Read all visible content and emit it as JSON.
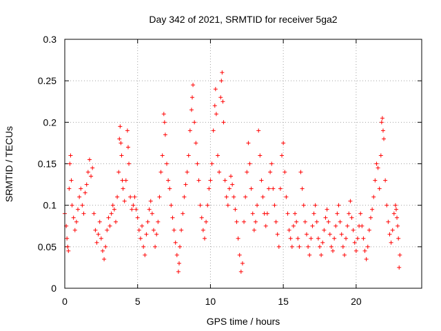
{
  "chart_data": {
    "type": "scatter",
    "title": "Day 342 of 2021, SRMTID for receiver 5ga2",
    "xlabel": "GPS time / hours",
    "ylabel": "SRMTID / TECUs",
    "xlim": [
      0,
      24.5
    ],
    "ylim": [
      0,
      0.3
    ],
    "xticks": [
      0,
      5,
      10,
      15,
      20
    ],
    "xtick_labels": [
      "0",
      "5",
      "10",
      "15",
      "20"
    ],
    "yticks": [
      0,
      0.05,
      0.1,
      0.15,
      0.2,
      0.25,
      0.3
    ],
    "ytick_labels": [
      "0",
      "0.05",
      "0.1",
      "0.15",
      "0.2",
      "0.25",
      "0.3"
    ],
    "grid": true,
    "marker": "plus",
    "color": "#ff0000",
    "series": [
      {
        "name": "SRMTID",
        "points": [
          [
            0.0,
            0.09
          ],
          [
            0.1,
            0.075
          ],
          [
            0.15,
            0.06
          ],
          [
            0.2,
            0.05
          ],
          [
            0.25,
            0.045
          ],
          [
            0.3,
            0.12
          ],
          [
            0.35,
            0.15
          ],
          [
            0.4,
            0.16
          ],
          [
            0.45,
            0.13
          ],
          [
            0.5,
            0.1
          ],
          [
            0.6,
            0.085
          ],
          [
            0.7,
            0.07
          ],
          [
            0.8,
            0.08
          ],
          [
            0.9,
            0.095
          ],
          [
            1.0,
            0.11
          ],
          [
            1.1,
            0.12
          ],
          [
            1.2,
            0.1
          ],
          [
            1.3,
            0.09
          ],
          [
            1.4,
            0.115
          ],
          [
            1.5,
            0.125
          ],
          [
            1.6,
            0.14
          ],
          [
            1.7,
            0.155
          ],
          [
            1.8,
            0.135
          ],
          [
            1.9,
            0.145
          ],
          [
            2.0,
            0.09
          ],
          [
            2.1,
            0.07
          ],
          [
            2.2,
            0.055
          ],
          [
            2.3,
            0.065
          ],
          [
            2.4,
            0.08
          ],
          [
            2.5,
            0.06
          ],
          [
            2.6,
            0.045
          ],
          [
            2.7,
            0.035
          ],
          [
            2.8,
            0.05
          ],
          [
            2.9,
            0.07
          ],
          [
            3.0,
            0.085
          ],
          [
            3.1,
            0.075
          ],
          [
            3.2,
            0.09
          ],
          [
            3.3,
            0.1
          ],
          [
            3.4,
            0.095
          ],
          [
            3.5,
            0.08
          ],
          [
            3.6,
            0.11
          ],
          [
            3.7,
            0.14
          ],
          [
            3.75,
            0.18
          ],
          [
            3.8,
            0.195
          ],
          [
            3.85,
            0.175
          ],
          [
            3.9,
            0.16
          ],
          [
            3.95,
            0.13
          ],
          [
            4.0,
            0.12
          ],
          [
            4.1,
            0.105
          ],
          [
            4.2,
            0.13
          ],
          [
            4.3,
            0.19
          ],
          [
            4.35,
            0.17
          ],
          [
            4.4,
            0.15
          ],
          [
            4.5,
            0.11
          ],
          [
            4.6,
            0.095
          ],
          [
            4.7,
            0.1
          ],
          [
            4.8,
            0.11
          ],
          [
            4.9,
            0.095
          ],
          [
            5.0,
            0.085
          ],
          [
            5.1,
            0.07
          ],
          [
            5.2,
            0.06
          ],
          [
            5.3,
            0.075
          ],
          [
            5.4,
            0.05
          ],
          [
            5.5,
            0.04
          ],
          [
            5.6,
            0.065
          ],
          [
            5.7,
            0.08
          ],
          [
            5.8,
            0.095
          ],
          [
            5.9,
            0.105
          ],
          [
            6.0,
            0.09
          ],
          [
            6.1,
            0.07
          ],
          [
            6.2,
            0.05
          ],
          [
            6.3,
            0.065
          ],
          [
            6.4,
            0.08
          ],
          [
            6.5,
            0.11
          ],
          [
            6.6,
            0.14
          ],
          [
            6.7,
            0.16
          ],
          [
            6.8,
            0.21
          ],
          [
            6.85,
            0.2
          ],
          [
            6.9,
            0.185
          ],
          [
            7.0,
            0.15
          ],
          [
            7.1,
            0.13
          ],
          [
            7.2,
            0.12
          ],
          [
            7.3,
            0.1
          ],
          [
            7.4,
            0.085
          ],
          [
            7.5,
            0.07
          ],
          [
            7.6,
            0.055
          ],
          [
            7.7,
            0.04
          ],
          [
            7.8,
            0.02
          ],
          [
            7.85,
            0.03
          ],
          [
            7.9,
            0.05
          ],
          [
            8.0,
            0.07
          ],
          [
            8.1,
            0.09
          ],
          [
            8.2,
            0.11
          ],
          [
            8.3,
            0.125
          ],
          [
            8.4,
            0.14
          ],
          [
            8.5,
            0.16
          ],
          [
            8.6,
            0.19
          ],
          [
            8.7,
            0.215
          ],
          [
            8.75,
            0.23
          ],
          [
            8.8,
            0.245
          ],
          [
            8.9,
            0.2
          ],
          [
            9.0,
            0.175
          ],
          [
            9.1,
            0.15
          ],
          [
            9.2,
            0.13
          ],
          [
            9.3,
            0.1
          ],
          [
            9.4,
            0.085
          ],
          [
            9.5,
            0.07
          ],
          [
            9.6,
            0.06
          ],
          [
            9.7,
            0.08
          ],
          [
            9.8,
            0.1
          ],
          [
            9.9,
            0.12
          ],
          [
            10.0,
            0.13
          ],
          [
            10.1,
            0.15
          ],
          [
            10.2,
            0.19
          ],
          [
            10.3,
            0.22
          ],
          [
            10.35,
            0.24
          ],
          [
            10.4,
            0.21
          ],
          [
            10.5,
            0.16
          ],
          [
            10.6,
            0.14
          ],
          [
            10.7,
            0.23
          ],
          [
            10.75,
            0.25
          ],
          [
            10.8,
            0.26
          ],
          [
            10.85,
            0.225
          ],
          [
            10.9,
            0.2
          ],
          [
            11.0,
            0.13
          ],
          [
            11.1,
            0.11
          ],
          [
            11.2,
            0.1
          ],
          [
            11.3,
            0.12
          ],
          [
            11.4,
            0.135
          ],
          [
            11.5,
            0.125
          ],
          [
            11.6,
            0.11
          ],
          [
            11.7,
            0.095
          ],
          [
            11.8,
            0.08
          ],
          [
            11.9,
            0.06
          ],
          [
            12.0,
            0.04
          ],
          [
            12.1,
            0.02
          ],
          [
            12.2,
            0.03
          ],
          [
            12.3,
            0.08
          ],
          [
            12.4,
            0.11
          ],
          [
            12.5,
            0.14
          ],
          [
            12.6,
            0.175
          ],
          [
            12.7,
            0.15
          ],
          [
            12.8,
            0.12
          ],
          [
            12.9,
            0.09
          ],
          [
            13.0,
            0.07
          ],
          [
            13.1,
            0.08
          ],
          [
            13.2,
            0.1
          ],
          [
            13.3,
            0.19
          ],
          [
            13.4,
            0.16
          ],
          [
            13.5,
            0.13
          ],
          [
            13.6,
            0.11
          ],
          [
            13.7,
            0.09
          ],
          [
            13.8,
            0.075
          ],
          [
            13.9,
            0.09
          ],
          [
            14.0,
            0.12
          ],
          [
            14.1,
            0.14
          ],
          [
            14.2,
            0.15
          ],
          [
            14.3,
            0.12
          ],
          [
            14.4,
            0.1
          ],
          [
            14.5,
            0.08
          ],
          [
            14.6,
            0.065
          ],
          [
            14.7,
            0.05
          ],
          [
            14.8,
            0.12
          ],
          [
            14.9,
            0.16
          ],
          [
            15.0,
            0.175
          ],
          [
            15.1,
            0.14
          ],
          [
            15.2,
            0.11
          ],
          [
            15.3,
            0.09
          ],
          [
            15.4,
            0.07
          ],
          [
            15.5,
            0.06
          ],
          [
            15.6,
            0.05
          ],
          [
            15.7,
            0.075
          ],
          [
            15.8,
            0.09
          ],
          [
            15.9,
            0.08
          ],
          [
            16.0,
            0.06
          ],
          [
            16.1,
            0.05
          ],
          [
            16.2,
            0.14
          ],
          [
            16.3,
            0.12
          ],
          [
            16.4,
            0.1
          ],
          [
            16.5,
            0.08
          ],
          [
            16.6,
            0.065
          ],
          [
            16.7,
            0.05
          ],
          [
            16.8,
            0.04
          ],
          [
            16.9,
            0.06
          ],
          [
            17.0,
            0.075
          ],
          [
            17.1,
            0.09
          ],
          [
            17.2,
            0.1
          ],
          [
            17.3,
            0.08
          ],
          [
            17.4,
            0.06
          ],
          [
            17.5,
            0.05
          ],
          [
            17.6,
            0.04
          ],
          [
            17.7,
            0.055
          ],
          [
            17.8,
            0.07
          ],
          [
            17.9,
            0.085
          ],
          [
            18.0,
            0.095
          ],
          [
            18.1,
            0.08
          ],
          [
            18.2,
            0.065
          ],
          [
            18.3,
            0.05
          ],
          [
            18.4,
            0.045
          ],
          [
            18.5,
            0.06
          ],
          [
            18.6,
            0.075
          ],
          [
            18.7,
            0.09
          ],
          [
            18.8,
            0.1
          ],
          [
            18.9,
            0.08
          ],
          [
            19.0,
            0.065
          ],
          [
            19.1,
            0.05
          ],
          [
            19.2,
            0.04
          ],
          [
            19.3,
            0.06
          ],
          [
            19.4,
            0.075
          ],
          [
            19.5,
            0.09
          ],
          [
            19.6,
            0.105
          ],
          [
            19.7,
            0.085
          ],
          [
            19.8,
            0.07
          ],
          [
            19.9,
            0.055
          ],
          [
            20.0,
            0.045
          ],
          [
            20.1,
            0.06
          ],
          [
            20.2,
            0.075
          ],
          [
            20.3,
            0.09
          ],
          [
            20.4,
            0.075
          ],
          [
            20.5,
            0.06
          ],
          [
            20.6,
            0.045
          ],
          [
            20.7,
            0.035
          ],
          [
            20.8,
            0.05
          ],
          [
            20.9,
            0.07
          ],
          [
            21.0,
            0.085
          ],
          [
            21.1,
            0.095
          ],
          [
            21.2,
            0.11
          ],
          [
            21.3,
            0.13
          ],
          [
            21.4,
            0.15
          ],
          [
            21.5,
            0.145
          ],
          [
            21.6,
            0.12
          ],
          [
            21.7,
            0.16
          ],
          [
            21.75,
            0.2
          ],
          [
            21.8,
            0.205
          ],
          [
            21.85,
            0.19
          ],
          [
            21.9,
            0.18
          ],
          [
            22.0,
            0.13
          ],
          [
            22.1,
            0.1
          ],
          [
            22.2,
            0.08
          ],
          [
            22.3,
            0.065
          ],
          [
            22.4,
            0.055
          ],
          [
            22.5,
            0.07
          ],
          [
            22.6,
            0.09
          ],
          [
            22.7,
            0.1
          ],
          [
            22.8,
            0.085
          ],
          [
            22.9,
            0.06
          ],
          [
            23.0,
            0.04
          ],
          [
            22.95,
            0.025
          ],
          [
            22.85,
            0.075
          ],
          [
            22.75,
            0.095
          ]
        ]
      }
    ]
  }
}
